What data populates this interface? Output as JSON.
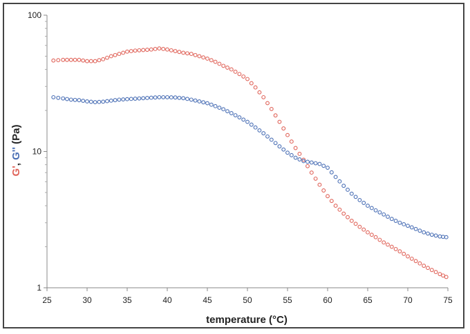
{
  "chart_data": {
    "type": "scatter",
    "title": "",
    "xlabel": "temperature (°C)",
    "ylabel_parts": [
      {
        "text": "G'",
        "color": "#e0645a"
      },
      {
        "text": ", ",
        "color": "#222222"
      },
      {
        "text": "G''",
        "color": "#4a6fb5"
      },
      {
        "text": " (Pa)",
        "color": "#222222"
      }
    ],
    "xlim": [
      25,
      75
    ],
    "ylim": [
      1,
      100
    ],
    "y_scale": "log",
    "grid": false,
    "legend": "none",
    "x_ticks": [
      "25",
      "30",
      "35",
      "40",
      "45",
      "50",
      "55",
      "60",
      "65",
      "70",
      "75"
    ],
    "y_ticks": [
      {
        "value": 1,
        "label": "1"
      },
      {
        "value": 10,
        "label": "10"
      },
      {
        "value": 100,
        "label": "100"
      }
    ],
    "series": [
      {
        "color": "#e0645a",
        "marker": "open-circle",
        "x": [
          25.8,
          27,
          28,
          29,
          30,
          31,
          32,
          33,
          34,
          35,
          36,
          37,
          38,
          39,
          40,
          41,
          42,
          43,
          44,
          45,
          46,
          47,
          48,
          49,
          50,
          51,
          52,
          53,
          54,
          55,
          56,
          57,
          58,
          59,
          60,
          61,
          62,
          63,
          64,
          65,
          66,
          67,
          68,
          69,
          70,
          71,
          72,
          73,
          74,
          74.8
        ],
        "y": [
          46.5,
          47,
          47,
          47,
          46,
          46,
          47.5,
          50,
          52,
          54,
          55,
          55.5,
          56,
          57,
          56,
          54.5,
          53,
          52,
          50,
          48,
          45.5,
          42.5,
          40,
          37,
          34,
          29.5,
          25,
          20.5,
          16.5,
          13.2,
          10.6,
          8.7,
          7.0,
          5.7,
          4.7,
          4.0,
          3.5,
          3.1,
          2.8,
          2.55,
          2.35,
          2.15,
          2.0,
          1.85,
          1.7,
          1.57,
          1.45,
          1.35,
          1.26,
          1.2
        ]
      },
      {
        "color": "#4a6fb5",
        "marker": "open-circle",
        "x": [
          25.8,
          27,
          28,
          29,
          30,
          31,
          32,
          33,
          34,
          35,
          36,
          37,
          38,
          39,
          40,
          41,
          42,
          43,
          44,
          45,
          46,
          47,
          48,
          49,
          50,
          51,
          52,
          53,
          54,
          55,
          56,
          57,
          58,
          59,
          60,
          61,
          62,
          63,
          64,
          65,
          66,
          67,
          68,
          69,
          70,
          71,
          72,
          73,
          74,
          74.8
        ],
        "y": [
          25,
          24.5,
          24,
          23.8,
          23.3,
          23,
          23.2,
          23.6,
          24,
          24.2,
          24.4,
          24.6,
          24.8,
          25,
          25,
          24.9,
          24.6,
          24,
          23.3,
          22.6,
          21.5,
          20.4,
          19.1,
          17.8,
          16.5,
          15,
          13.6,
          12.2,
          10.9,
          9.8,
          9.0,
          8.5,
          8.3,
          8.1,
          7.6,
          6.5,
          5.6,
          4.9,
          4.4,
          4.0,
          3.7,
          3.45,
          3.2,
          3.0,
          2.85,
          2.7,
          2.55,
          2.45,
          2.38,
          2.35
        ]
      }
    ]
  }
}
